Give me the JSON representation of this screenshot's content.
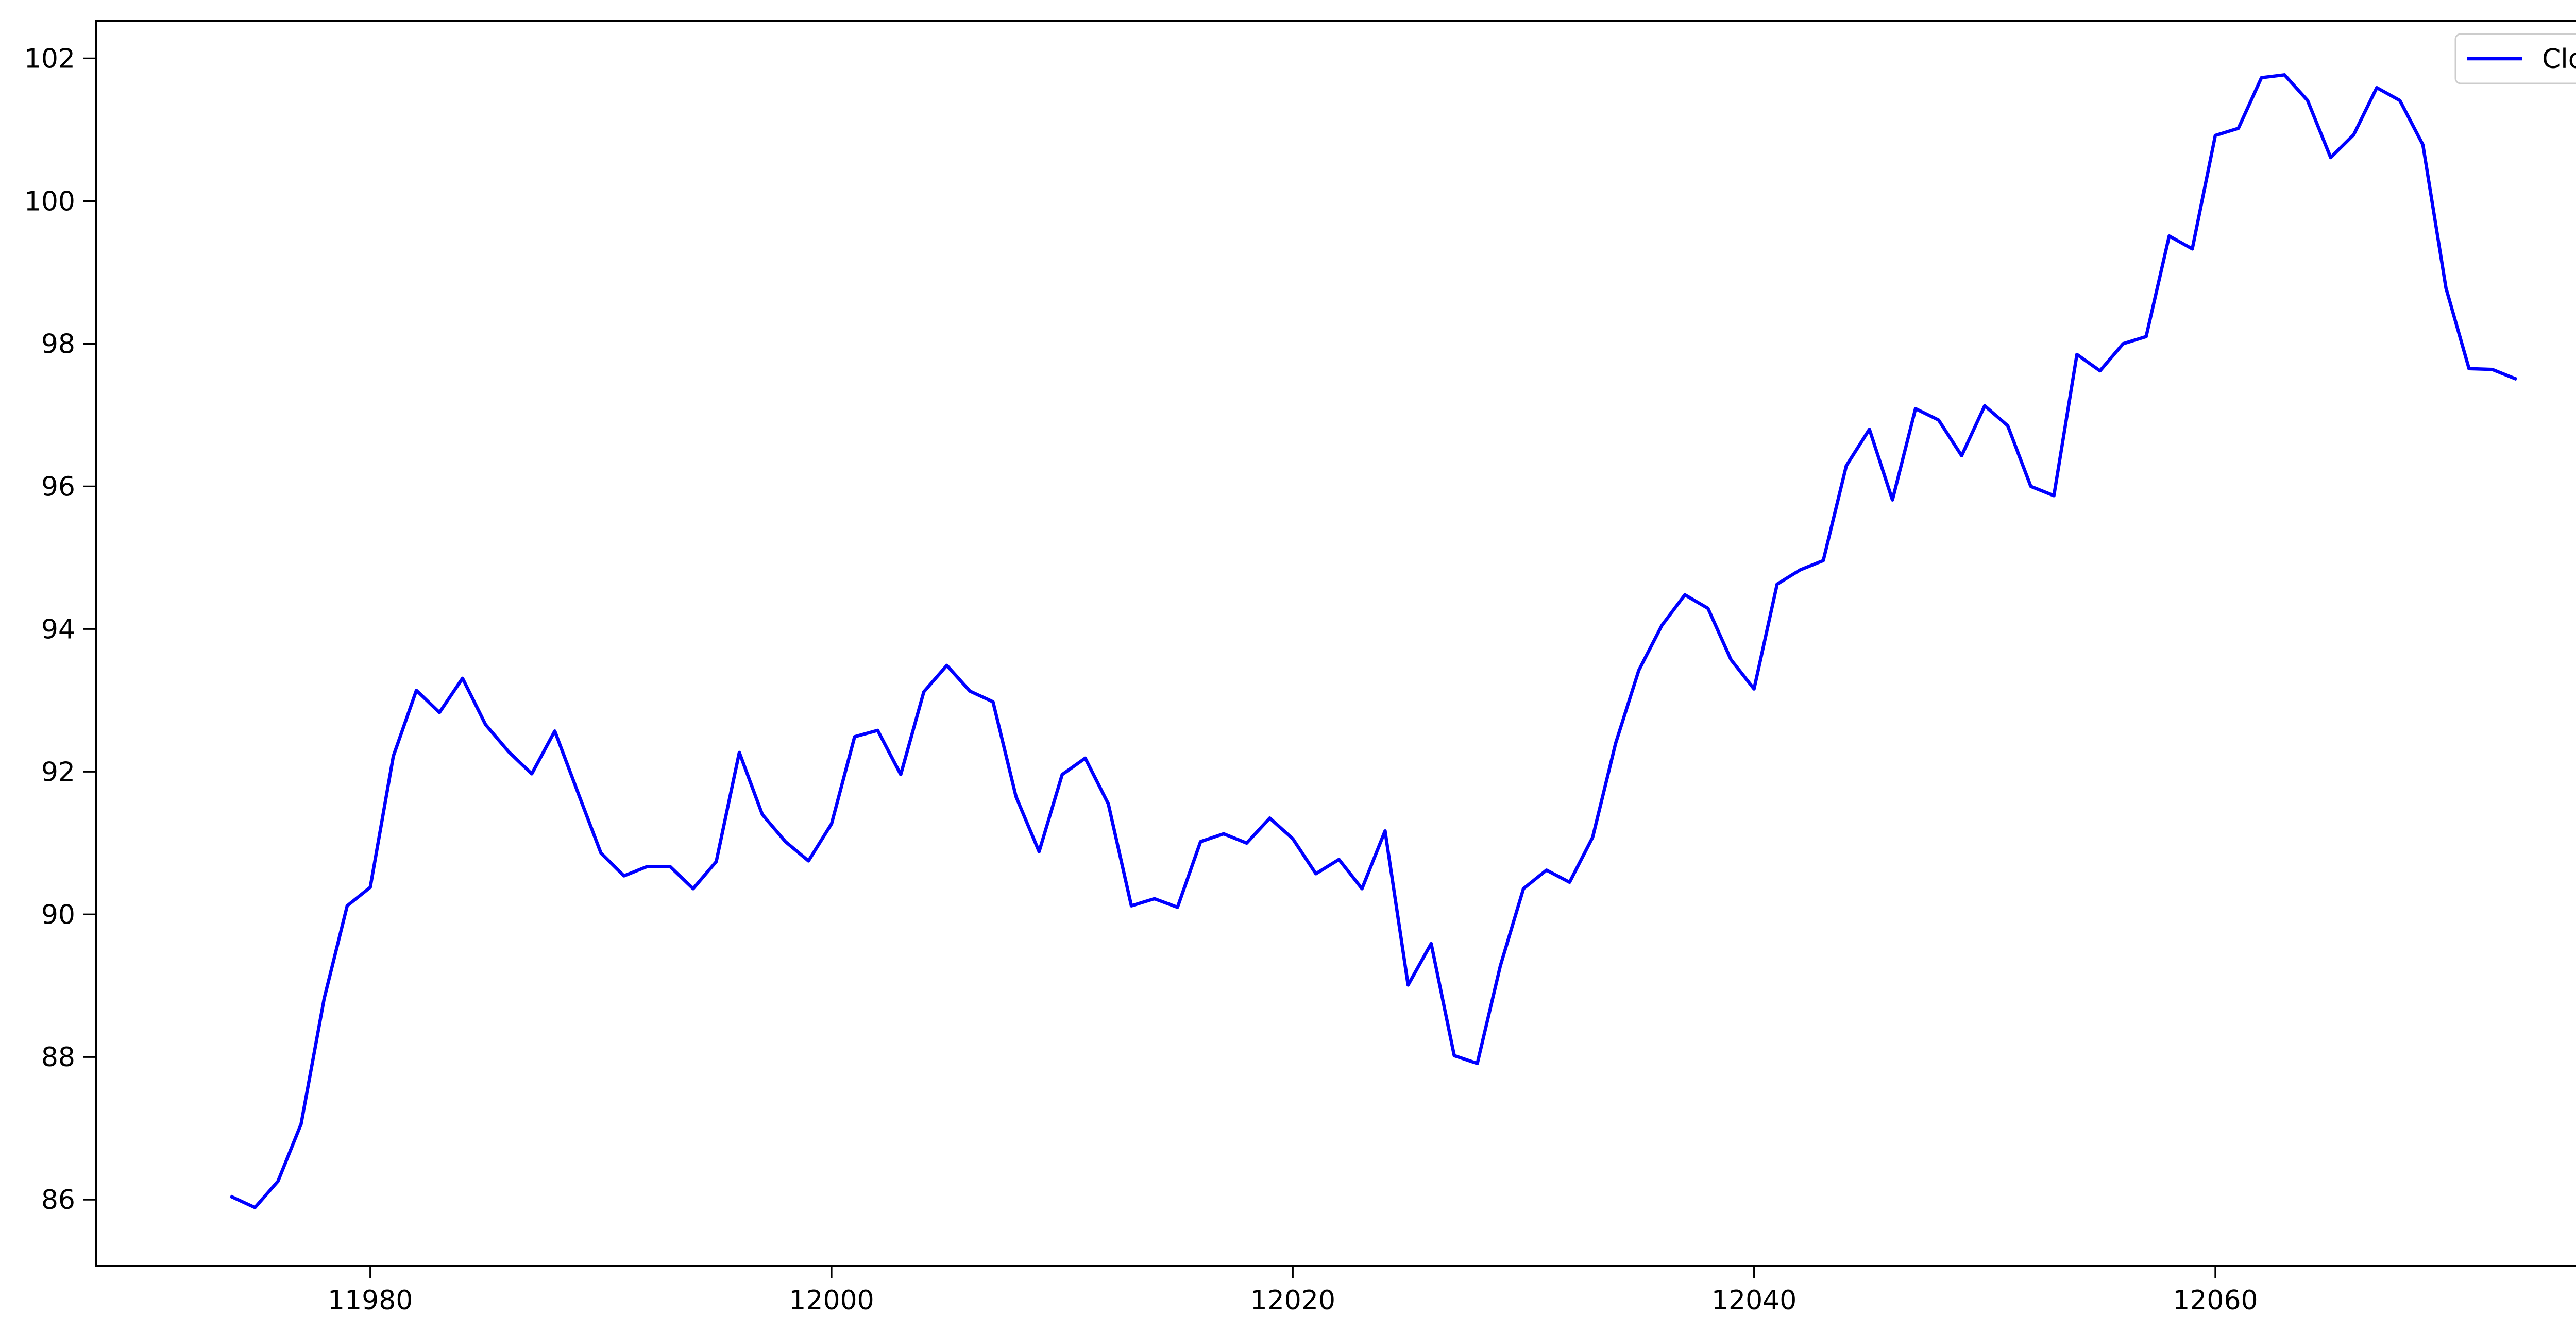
{
  "chart_data": {
    "type": "line",
    "title": "",
    "xlabel": "",
    "ylabel": "",
    "xlim": [
      11968.1,
      12078.9
    ],
    "ylim": [
      85.07,
      102.53
    ],
    "x_ticks": [
      11980,
      12000,
      12020,
      12040,
      12060
    ],
    "y_ticks": [
      86,
      88,
      90,
      92,
      94,
      96,
      98,
      100,
      102
    ],
    "grid": false,
    "legend": {
      "position": "top-right",
      "entries": [
        "Close"
      ]
    },
    "series": [
      {
        "name": "Close",
        "color": "#0000ff",
        "x": [
          11974,
          11975,
          11976,
          11977,
          11978,
          11979,
          11980,
          11981,
          11982,
          11983,
          11984,
          11985,
          11986,
          11987,
          11988,
          11989,
          11990,
          11991,
          11992,
          11993,
          11994,
          11995,
          11996,
          11997,
          11998,
          11999,
          12000,
          12001,
          12002,
          12003,
          12004,
          12005,
          12006,
          12007,
          12008,
          12009,
          12010,
          12011,
          12012,
          12013,
          12014,
          12015,
          12016,
          12017,
          12018,
          12019,
          12020,
          12021,
          12022,
          12023,
          12024,
          12025,
          12026,
          12027,
          12028,
          12029,
          12030,
          12031,
          12032,
          12033,
          12034,
          12035,
          12036,
          12037,
          12038,
          12039,
          12040,
          12041,
          12042,
          12043,
          12044,
          12045,
          12046,
          12047,
          12048,
          12049,
          12050,
          12051,
          12052,
          12053,
          12054,
          12055,
          12056,
          12057,
          12058,
          12059,
          12060,
          12061,
          12062,
          12063,
          12064,
          12065,
          12066,
          12067,
          12068,
          12069,
          12070,
          12071,
          12072,
          12073
        ],
        "y": [
          86.04,
          85.89,
          86.26,
          87.06,
          88.82,
          90.12,
          90.38,
          92.22,
          93.14,
          92.83,
          93.31,
          92.66,
          92.28,
          91.97,
          92.57,
          91.71,
          90.86,
          90.54,
          90.67,
          90.67,
          90.36,
          90.74,
          92.27,
          91.4,
          91.02,
          90.75,
          91.27,
          92.49,
          92.58,
          91.96,
          93.12,
          93.49,
          93.13,
          92.98,
          91.65,
          90.88,
          91.96,
          92.19,
          91.55,
          90.12,
          90.22,
          90.1,
          91.02,
          91.13,
          91.0,
          91.35,
          91.06,
          90.57,
          90.77,
          90.36,
          91.17,
          89.01,
          89.59,
          88.02,
          87.91,
          89.28,
          90.36,
          90.62,
          90.45,
          91.08,
          92.4,
          93.42,
          94.05,
          94.48,
          94.29,
          93.57,
          93.16,
          94.63,
          94.83,
          94.96,
          96.29,
          96.8,
          95.81,
          97.09,
          96.93,
          96.43,
          97.13,
          96.85,
          96.0,
          95.87,
          97.85,
          97.62,
          98.0,
          98.1,
          99.51,
          99.33,
          100.92,
          101.02,
          101.73,
          101.77,
          101.41,
          100.61,
          100.93,
          101.59,
          101.41,
          100.79,
          98.78,
          97.65,
          97.64,
          97.51
        ]
      }
    ]
  }
}
